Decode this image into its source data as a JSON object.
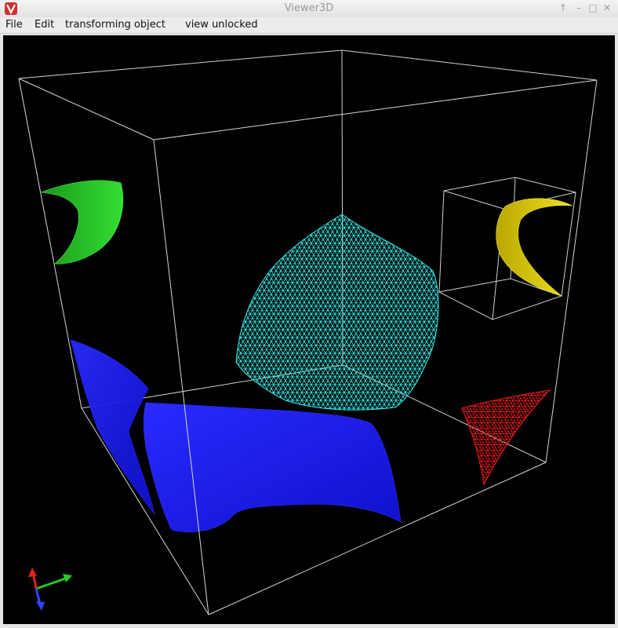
{
  "window": {
    "title": "Viewer3D",
    "controls": {
      "pin": "↑",
      "minimize": "–",
      "maximize": "□",
      "close": "✕"
    }
  },
  "menu": {
    "items": [
      {
        "label": "File"
      },
      {
        "label": "Edit"
      },
      {
        "label": "transforming object"
      },
      {
        "label": "view unlocked"
      }
    ]
  },
  "scene": {
    "background": "#000000",
    "box_color": "#d0d0d0",
    "objects": [
      {
        "name": "green-surface",
        "color": "#22c022"
      },
      {
        "name": "cyan-mesh",
        "color": "#33e8e8"
      },
      {
        "name": "yellow-surface",
        "color": "#d8c800"
      },
      {
        "name": "blue-surface",
        "color": "#1a1aee"
      },
      {
        "name": "red-mesh",
        "color": "#ee1a1a"
      }
    ],
    "axes": {
      "x_color": "#22cc22",
      "y_color": "#dd2222",
      "z_color": "#3344ff"
    }
  }
}
